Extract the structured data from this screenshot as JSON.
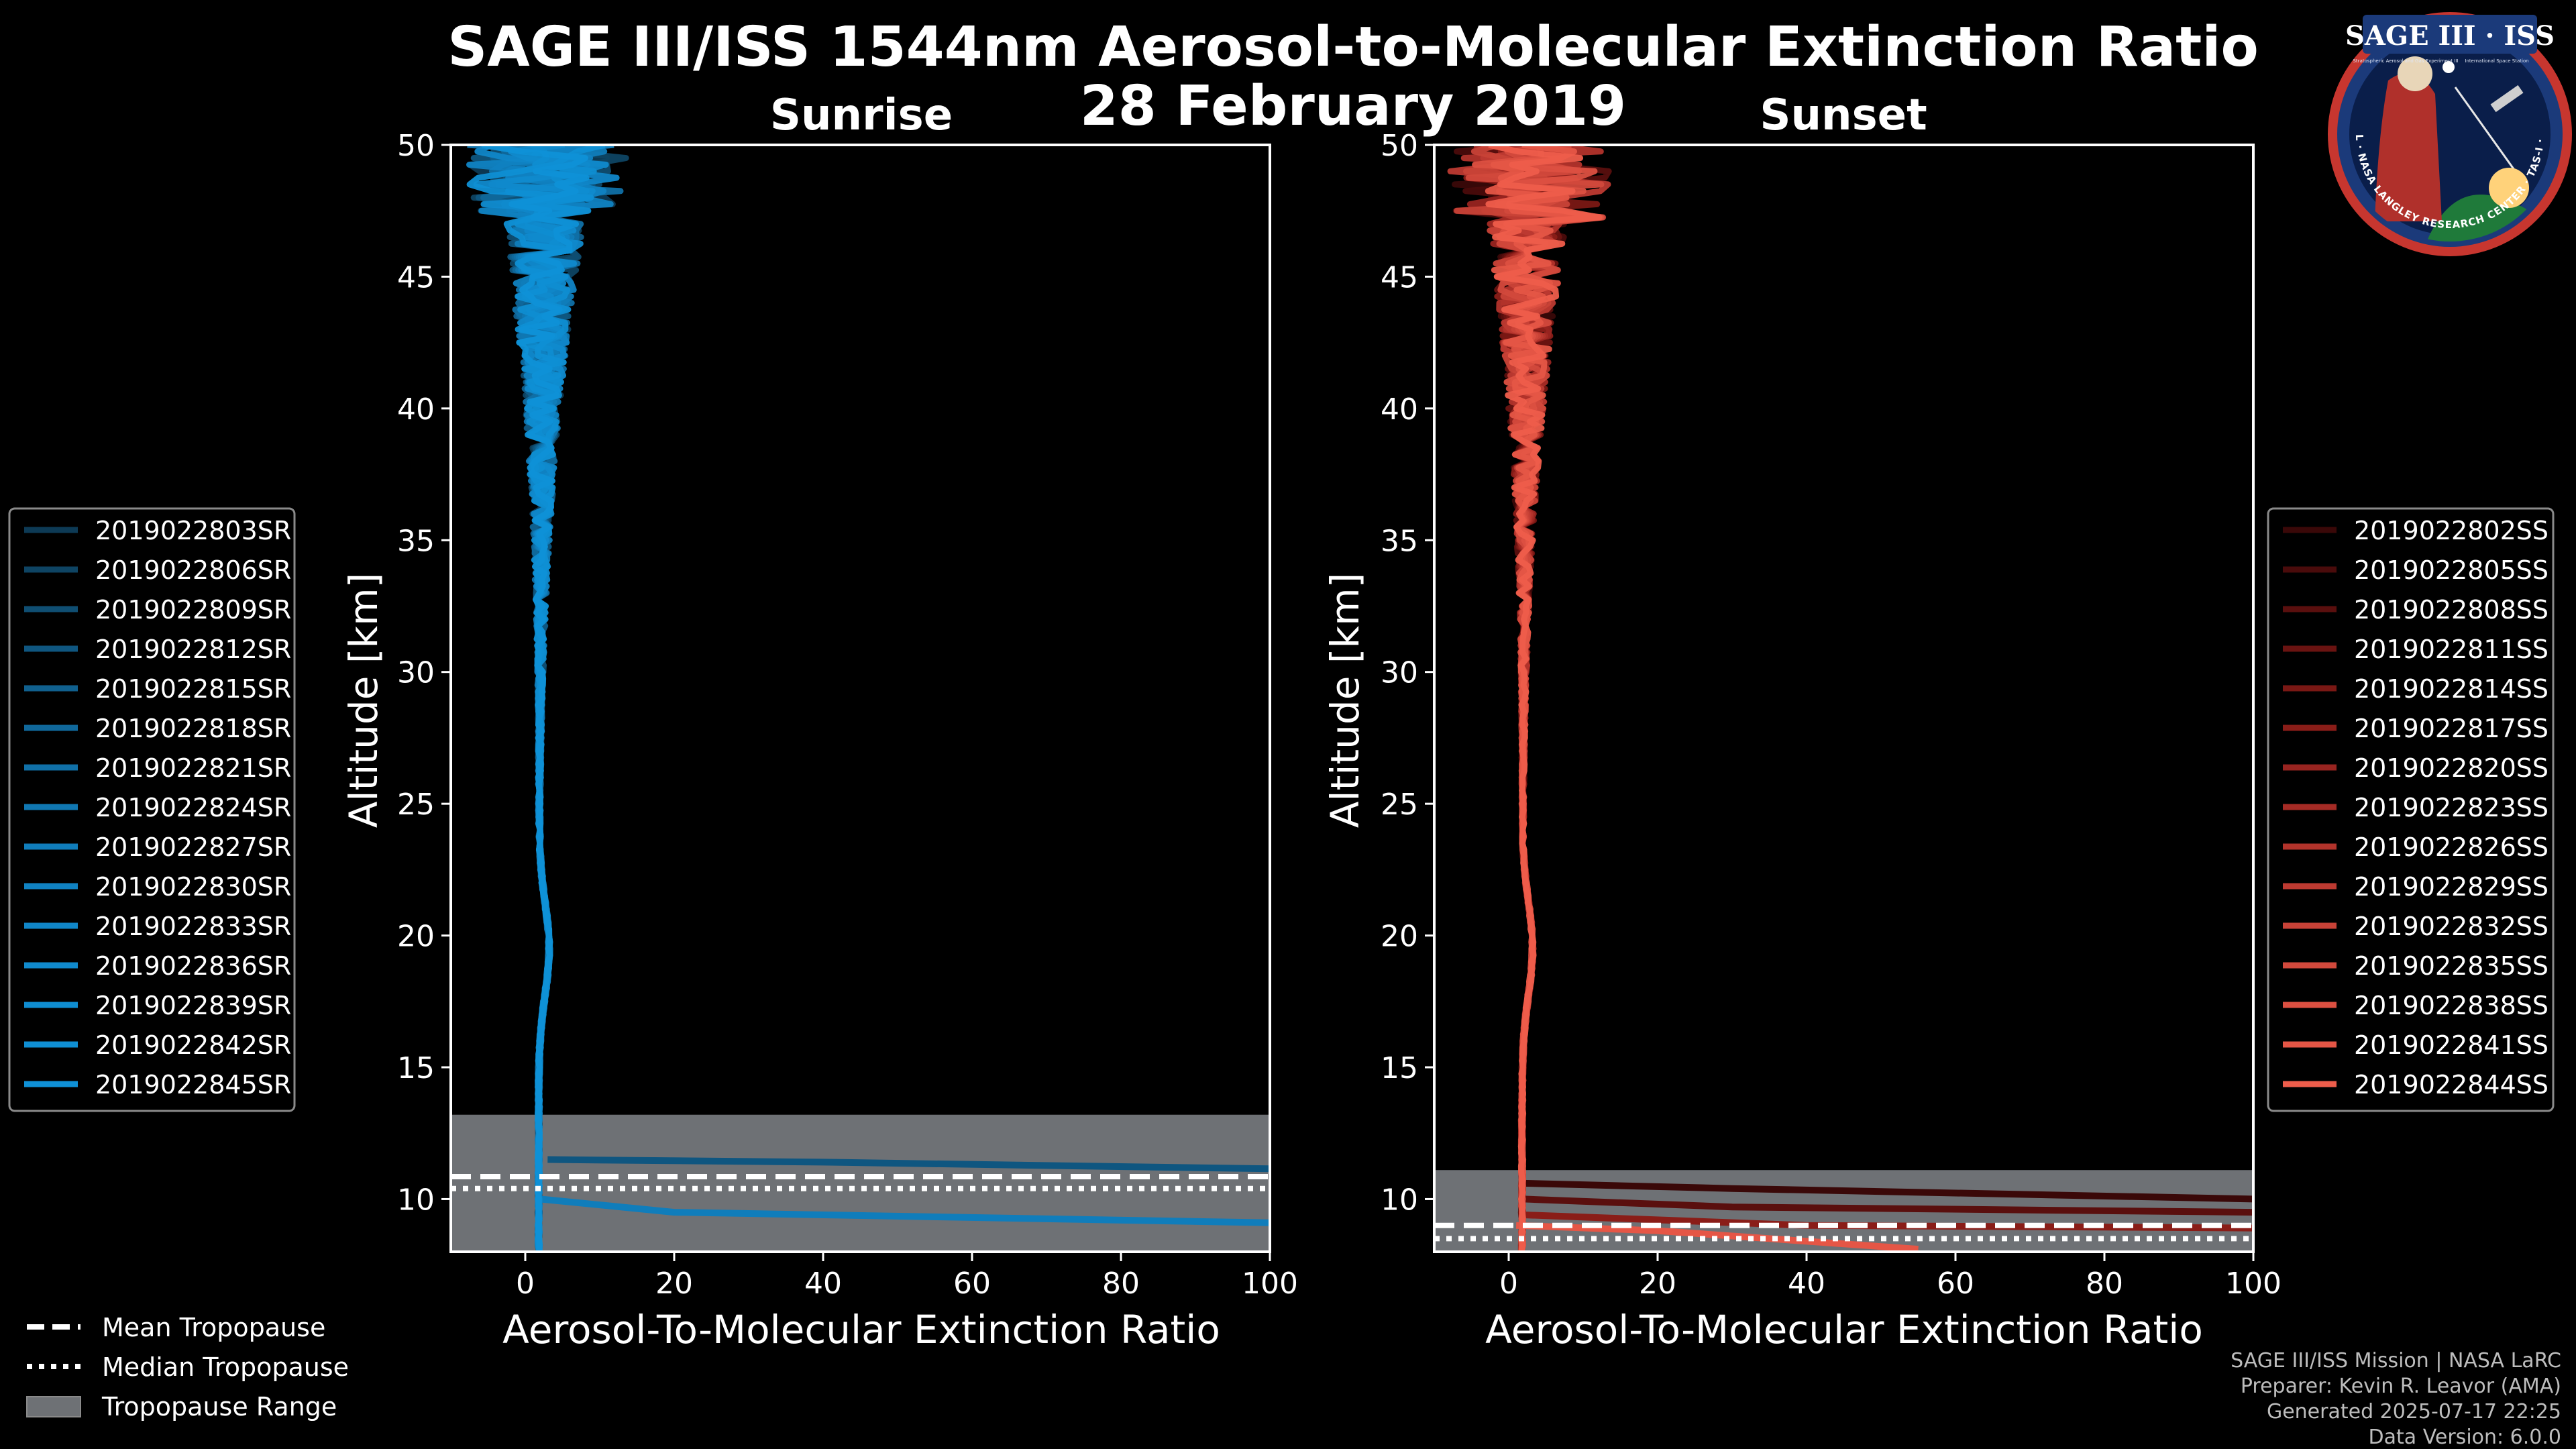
{
  "title": {
    "line1": "SAGE III/ISS 1544nm Aerosol-to-Molecular Extinction Ratio",
    "line2": "28 February 2019"
  },
  "logo": {
    "text": "SAGE III · ISS",
    "ring_text": "BALL · NASA LANGLEY RESEARCH CENTER · TAS-I · ESA",
    "tiny_left": "Stratospheric Aerosol and Gas Experiment III",
    "tiny_right": "International Space Station"
  },
  "credits": {
    "line1": "SAGE III/ISS Mission | NASA LaRC",
    "line2": "Preparer: Kevin R. Leavor (AMA)",
    "line3": "Generated 2025-07-17 22:25",
    "line4": "Data Version: 6.0.0"
  },
  "tropopause_legend": {
    "mean": "Mean Tropopause",
    "median": "Median Tropopause",
    "range": "Tropopause Range"
  },
  "colors": {
    "background": "#000000",
    "sunrise": "#0f8fd6",
    "sunset": "#ef5b4a",
    "tropopause_range": "#6e7175",
    "frame": "#ffffff"
  },
  "chart_data": [
    {
      "type": "line",
      "panel": "sunrise",
      "title": "Sunrise",
      "xlabel": "Aerosol-To-Molecular Extinction Ratio",
      "ylabel": "Altitude [km]",
      "xlim": [
        -10,
        100
      ],
      "ylim": [
        8,
        50
      ],
      "xticks": [
        0,
        20,
        40,
        60,
        80,
        100
      ],
      "yticks": [
        10,
        15,
        20,
        25,
        30,
        35,
        40,
        45,
        50
      ],
      "legend_position": "left",
      "tropopause": {
        "mean": 10.85,
        "median": 10.4,
        "range": [
          8,
          13.2
        ]
      },
      "series": [
        {
          "name": "2019022803SR",
          "color": "#0d3a55"
        },
        {
          "name": "2019022806SR",
          "color": "#0e4463"
        },
        {
          "name": "2019022809SR",
          "color": "#0f4e72"
        },
        {
          "name": "2019022812SR",
          "color": "#0f5680",
          "low_branch": [
            [
              3,
              11.5
            ],
            [
              40,
              11.4
            ],
            [
              100,
              11.15
            ]
          ]
        },
        {
          "name": "2019022815SR",
          "color": "#10608e"
        },
        {
          "name": "2019022818SR",
          "color": "#10689b"
        },
        {
          "name": "2019022821SR",
          "color": "#1070a7"
        },
        {
          "name": "2019022824SR",
          "color": "#1077b2"
        },
        {
          "name": "2019022827SR",
          "color": "#107dbb",
          "low_branch": [
            [
              2,
              10
            ],
            [
              20,
              9.5
            ],
            [
              100,
              9.1
            ]
          ]
        },
        {
          "name": "2019022830SR",
          "color": "#1082c2"
        },
        {
          "name": "2019022833SR",
          "color": "#1086c8"
        },
        {
          "name": "2019022836SR",
          "color": "#108acd"
        },
        {
          "name": "2019022839SR",
          "color": "#0f8dd1"
        },
        {
          "name": "2019022842SR",
          "color": "#0f8fd4"
        },
        {
          "name": "2019022845SR",
          "color": "#0f91d7"
        }
      ]
    },
    {
      "type": "line",
      "panel": "sunset",
      "title": "Sunset",
      "xlabel": "Aerosol-To-Molecular Extinction Ratio",
      "ylabel": "Altitude [km]",
      "xlim": [
        -10,
        100
      ],
      "ylim": [
        8,
        50
      ],
      "xticks": [
        0,
        20,
        40,
        60,
        80,
        100
      ],
      "yticks": [
        10,
        15,
        20,
        25,
        30,
        35,
        40,
        45,
        50
      ],
      "legend_position": "right",
      "tropopause": {
        "mean": 9.0,
        "median": 8.5,
        "range": [
          8,
          11.1
        ]
      },
      "series": [
        {
          "name": "2019022802SS",
          "color": "#3a0808",
          "low_branch": [
            [
              2,
              10.6
            ],
            [
              30,
              10.4
            ],
            [
              100,
              10.0
            ]
          ]
        },
        {
          "name": "2019022805SS",
          "color": "#4a0b0b"
        },
        {
          "name": "2019022808SS",
          "color": "#5a0f0e",
          "low_branch": [
            [
              2,
              10.0
            ],
            [
              30,
              9.7
            ],
            [
              100,
              9.5
            ]
          ]
        },
        {
          "name": "2019022811SS",
          "color": "#6a1311"
        },
        {
          "name": "2019022814SS",
          "color": "#7a1814"
        },
        {
          "name": "2019022817SS",
          "color": "#8a1d18",
          "low_branch": [
            [
              2,
              9.4
            ],
            [
              40,
              9.0
            ],
            [
              100,
              8.9
            ]
          ]
        },
        {
          "name": "2019022820SS",
          "color": "#982420"
        },
        {
          "name": "2019022823SS",
          "color": "#a52b25"
        },
        {
          "name": "2019022826SS",
          "color": "#b2332b"
        },
        {
          "name": "2019022829SS",
          "color": "#bd3a31"
        },
        {
          "name": "2019022832SS",
          "color": "#c84237"
        },
        {
          "name": "2019022835SS",
          "color": "#d2493c"
        },
        {
          "name": "2019022838SS",
          "color": "#dc5041"
        },
        {
          "name": "2019022841SS",
          "color": "#e55646",
          "low_branch": [
            [
              1,
              9.0
            ],
            [
              20,
              8.8
            ],
            [
              55,
              8.1
            ]
          ]
        },
        {
          "name": "2019022844SS",
          "color": "#ee5d4b"
        }
      ]
    }
  ]
}
